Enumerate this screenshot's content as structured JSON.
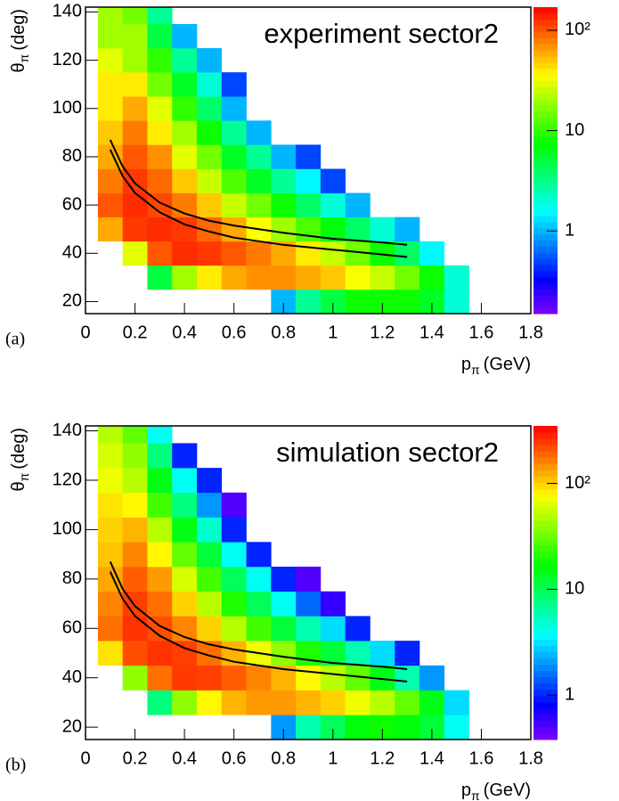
{
  "chart_data": [
    {
      "type": "heatmap",
      "title": "experiment sector2",
      "panel_label": "(a)",
      "x_label": "p",
      "x_label_sub": "π",
      "x_label_unit": "(GeV)",
      "y_label": "θ",
      "y_label_sub": "π",
      "y_label_unit": "(deg)",
      "xlim": [
        0,
        1.8
      ],
      "xticks": [
        0,
        0.2,
        0.4,
        0.6,
        0.8,
        1,
        1.2,
        1.4,
        1.6,
        1.8
      ],
      "ylim": [
        15,
        142
      ],
      "yticks": [
        20,
        40,
        60,
        80,
        100,
        120,
        140
      ],
      "zscale": "log",
      "zlim": [
        0.15,
        170
      ],
      "zticks": [
        1,
        10,
        {
          "value": 100,
          "label": "10²"
        }
      ],
      "x_bins": [
        0.05,
        0.15,
        0.25,
        0.35,
        0.45,
        0.55,
        0.65,
        0.75,
        0.85,
        0.95,
        1.05,
        1.15,
        1.25,
        1.35,
        1.45,
        1.55
      ],
      "y_bins": [
        15,
        25,
        35,
        45,
        55,
        65,
        75,
        85,
        95,
        105,
        115,
        125,
        135,
        145
      ],
      "z": [
        [
          0,
          0,
          0,
          0,
          0,
          0,
          0,
          1,
          3,
          5,
          8,
          8,
          8,
          6,
          2
        ],
        [
          0,
          0,
          5,
          20,
          40,
          60,
          70,
          70,
          60,
          50,
          35,
          25,
          15,
          8,
          2
        ],
        [
          0,
          30,
          100,
          130,
          120,
          100,
          80,
          60,
          40,
          25,
          15,
          8,
          4,
          1.5,
          0
        ],
        [
          60,
          120,
          130,
          120,
          90,
          60,
          35,
          20,
          12,
          7,
          4,
          2,
          1,
          0,
          0
        ],
        [
          100,
          130,
          110,
          80,
          50,
          25,
          15,
          8,
          4,
          2,
          1,
          0,
          0,
          0,
          0
        ],
        [
          80,
          120,
          90,
          50,
          25,
          12,
          6,
          3,
          1.5,
          0.5,
          0,
          0,
          0,
          0,
          0
        ],
        [
          60,
          100,
          70,
          30,
          15,
          6,
          3,
          1,
          0.5,
          0,
          0,
          0,
          0,
          0,
          0
        ],
        [
          50,
          80,
          40,
          20,
          8,
          3,
          1,
          0,
          0,
          0,
          0,
          0,
          0,
          0,
          0
        ],
        [
          40,
          60,
          30,
          10,
          4,
          1,
          0,
          0,
          0,
          0,
          0,
          0,
          0,
          0,
          0
        ],
        [
          40,
          40,
          15,
          6,
          2,
          0.5,
          0,
          0,
          0,
          0,
          0,
          0,
          0,
          0,
          0
        ],
        [
          30,
          20,
          10,
          3,
          1,
          0,
          0,
          0,
          0,
          0,
          0,
          0,
          0,
          0,
          0
        ],
        [
          20,
          20,
          5,
          1,
          0,
          0,
          0,
          0,
          0,
          0,
          0,
          0,
          0,
          0,
          0
        ],
        [
          20,
          15,
          3,
          0,
          0,
          0,
          0,
          0,
          0,
          0,
          0,
          0,
          0,
          0,
          0
        ]
      ],
      "curves": [
        {
          "color": "#000000",
          "x": [
            0.1,
            0.15,
            0.2,
            0.3,
            0.4,
            0.5,
            0.6,
            0.8,
            1.0,
            1.2,
            1.3
          ],
          "y": [
            87,
            76,
            69,
            61,
            56.5,
            53.5,
            51.5,
            48.5,
            46,
            44.5,
            43.5
          ]
        },
        {
          "color": "#000000",
          "x": [
            0.1,
            0.15,
            0.2,
            0.3,
            0.4,
            0.5,
            0.6,
            0.8,
            1.0,
            1.2,
            1.3
          ],
          "y": [
            83,
            72,
            65,
            57,
            52,
            49,
            46.5,
            43.5,
            41.5,
            39.5,
            38.5
          ]
        }
      ]
    },
    {
      "type": "heatmap",
      "title": "simulation sector2",
      "panel_label": "(b)",
      "x_label": "p",
      "x_label_sub": "π",
      "x_label_unit": "(GeV)",
      "y_label": "θ",
      "y_label_sub": "π",
      "y_label_unit": "(deg)",
      "xlim": [
        0,
        1.8
      ],
      "xticks": [
        0,
        0.2,
        0.4,
        0.6,
        0.8,
        1,
        1.2,
        1.4,
        1.6,
        1.8
      ],
      "ylim": [
        15,
        142
      ],
      "yticks": [
        20,
        40,
        60,
        80,
        100,
        120,
        140
      ],
      "zscale": "log",
      "zlim": [
        0.38,
        350
      ],
      "zticks": [
        1,
        10,
        {
          "value": 100,
          "label": "10²"
        }
      ],
      "x_bins": [
        0.05,
        0.15,
        0.25,
        0.35,
        0.45,
        0.55,
        0.65,
        0.75,
        0.85,
        0.95,
        1.05,
        1.15,
        1.25,
        1.35,
        1.45,
        1.55
      ],
      "y_bins": [
        15,
        25,
        35,
        45,
        55,
        65,
        75,
        85,
        95,
        105,
        115,
        125,
        135,
        145
      ],
      "z": [
        [
          0,
          0,
          0,
          0,
          0,
          0,
          0,
          2,
          6,
          10,
          16,
          18,
          16,
          12,
          4
        ],
        [
          0,
          0,
          8,
          40,
          80,
          120,
          140,
          140,
          120,
          100,
          70,
          50,
          30,
          15,
          3
        ],
        [
          0,
          40,
          180,
          250,
          240,
          200,
          160,
          120,
          80,
          50,
          30,
          15,
          6,
          2,
          0
        ],
        [
          90,
          220,
          260,
          240,
          180,
          120,
          70,
          40,
          20,
          12,
          6,
          3,
          1,
          0,
          0
        ],
        [
          180,
          260,
          220,
          160,
          100,
          50,
          25,
          12,
          6,
          3,
          1,
          0,
          0,
          0,
          0
        ],
        [
          160,
          240,
          180,
          100,
          50,
          20,
          10,
          4,
          1.5,
          0.6,
          0,
          0,
          0,
          0,
          0
        ],
        [
          130,
          200,
          140,
          60,
          25,
          10,
          4,
          1,
          0.5,
          0,
          0,
          0,
          0,
          0,
          0
        ],
        [
          110,
          160,
          80,
          30,
          12,
          4,
          1,
          0,
          0,
          0,
          0,
          0,
          0,
          0,
          0
        ],
        [
          100,
          120,
          50,
          15,
          5,
          1,
          0,
          0,
          0,
          0,
          0,
          0,
          0,
          0,
          0
        ],
        [
          90,
          80,
          25,
          8,
          2,
          0.5,
          0,
          0,
          0,
          0,
          0,
          0,
          0,
          0,
          0
        ],
        [
          70,
          50,
          15,
          4,
          1,
          0,
          0,
          0,
          0,
          0,
          0,
          0,
          0,
          0,
          0
        ],
        [
          60,
          40,
          8,
          1,
          0,
          0,
          0,
          0,
          0,
          0,
          0,
          0,
          0,
          0,
          0
        ],
        [
          50,
          30,
          4,
          0,
          0,
          0,
          0,
          0,
          0,
          0,
          0,
          0,
          0,
          0,
          0
        ]
      ],
      "curves": [
        {
          "color": "#000000",
          "x": [
            0.1,
            0.15,
            0.2,
            0.3,
            0.4,
            0.5,
            0.6,
            0.8,
            1.0,
            1.2,
            1.3
          ],
          "y": [
            87,
            76,
            69,
            61,
            56.5,
            53.5,
            51.5,
            48.5,
            46,
            44.5,
            43.5
          ]
        },
        {
          "color": "#000000",
          "x": [
            0.1,
            0.15,
            0.2,
            0.3,
            0.4,
            0.5,
            0.6,
            0.8,
            1.0,
            1.2,
            1.3
          ],
          "y": [
            83,
            72,
            65,
            57,
            52,
            49,
            46.5,
            43.5,
            41.5,
            39.5,
            38.5
          ]
        }
      ]
    }
  ]
}
